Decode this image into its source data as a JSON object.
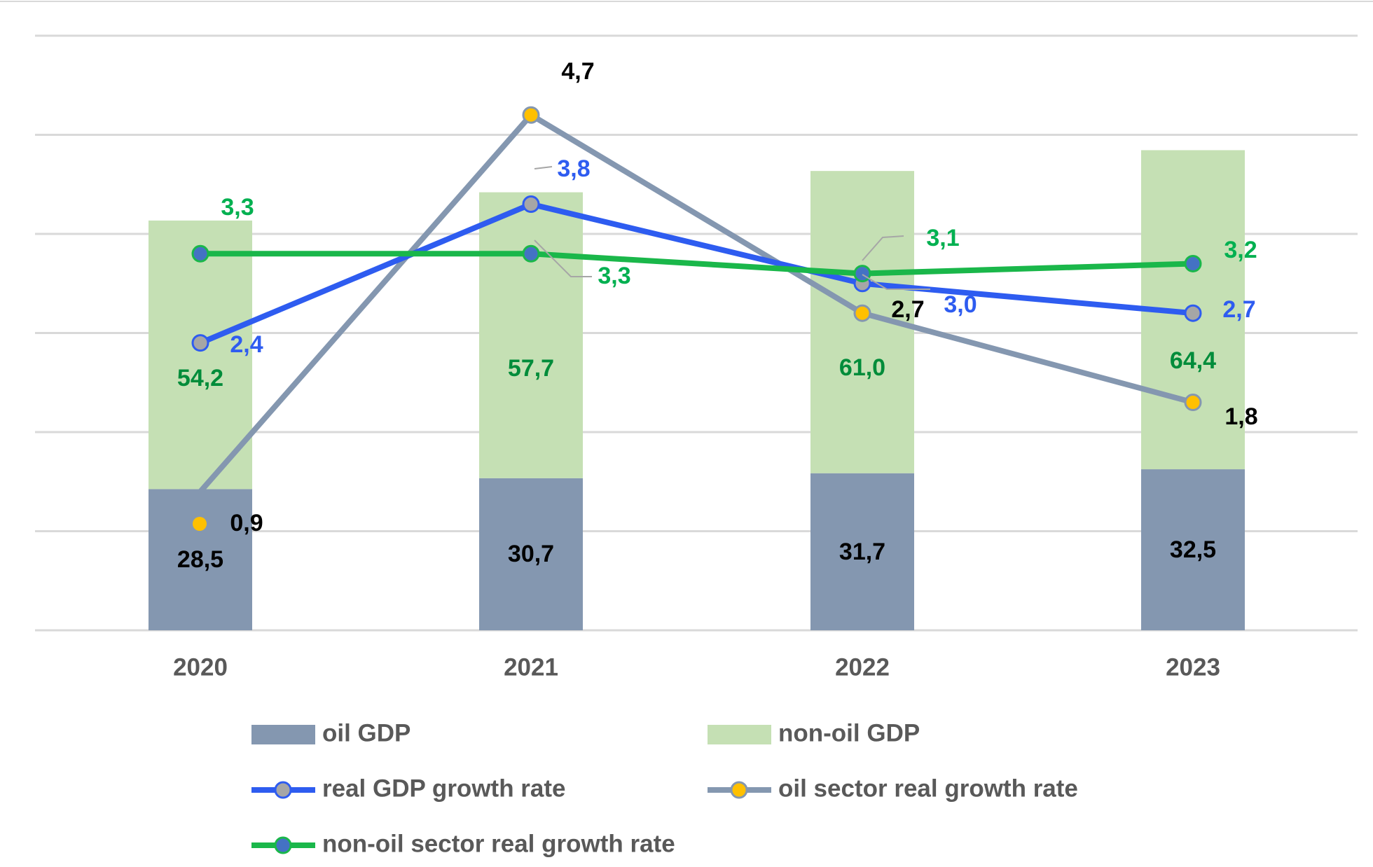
{
  "colors": {
    "oil_bar": "#8497b0",
    "nonoil_bar": "#c5e0b4",
    "real_gdp_line": "#2e5cf0",
    "oil_growth_line": "#8497b0",
    "nonoil_growth_line": "#1ab74a",
    "gray_marker": "#a6a6a6",
    "yellow_marker": "#ffc000",
    "green_marker": "#00b050",
    "blue_marker": "#4472c4",
    "grid": "#d9d9d9",
    "label_green": "#00b050",
    "label_dark_green": "#008c3a",
    "label_blue": "#2e5cf0",
    "label_black": "#000000",
    "axis_text": "#595959"
  },
  "chart_data": {
    "type": "bar",
    "title": "",
    "xlabel": "",
    "ylabel": "",
    "grid": true,
    "legend_position": "bottom",
    "categories": [
      "2020",
      "2021",
      "2022",
      "2023"
    ],
    "bar_stack": [
      {
        "name": "oil GDP",
        "values": [
          28.5,
          30.7,
          31.7,
          32.5
        ],
        "labels": [
          "28,5",
          "30,7",
          "31,7",
          "32,5"
        ]
      },
      {
        "name": "non-oil GDP",
        "values": [
          54.2,
          57.7,
          61.0,
          64.4
        ],
        "labels": [
          "54,2",
          "57,7",
          "61,0",
          "64,4"
        ]
      }
    ],
    "bar_ylim": [
      0,
      120
    ],
    "lines": [
      {
        "name": "real GDP growth rate",
        "values": [
          2.4,
          3.8,
          3.0,
          2.7
        ],
        "labels": [
          "2,4",
          "3,8",
          "3,0",
          "2,7"
        ]
      },
      {
        "name": "oil sector real growth rate",
        "values": [
          0.9,
          4.7,
          2.7,
          1.8
        ],
        "labels": [
          "0,9",
          "4,7",
          "2,7",
          "1,8"
        ]
      },
      {
        "name": "non-oil sector real growth rate",
        "values": [
          3.3,
          3.3,
          3.1,
          3.2
        ],
        "labels": [
          "3,3",
          "3,3",
          "3,1",
          "3,2"
        ]
      }
    ],
    "line_ylim": [
      -0.5,
      5.5
    ]
  }
}
